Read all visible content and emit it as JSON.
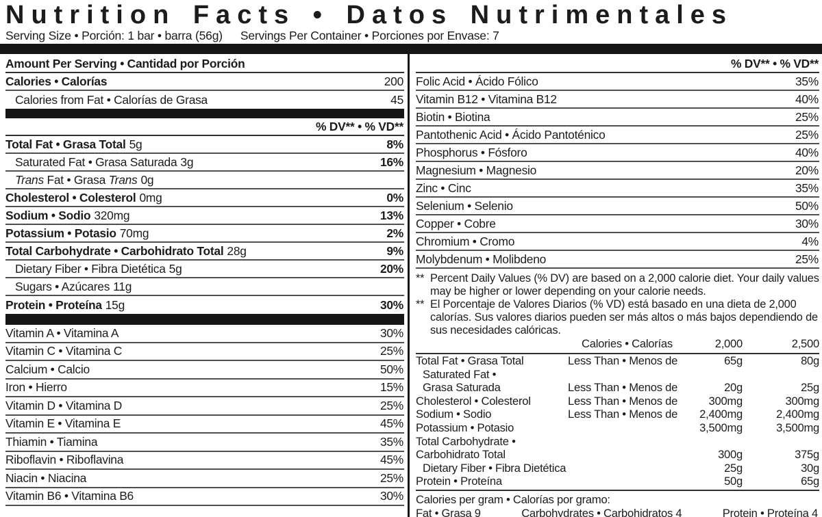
{
  "colors": {
    "text": "#1c1c1c",
    "rule": "#4f4f4f",
    "bar": "#161616",
    "background": "#ffffff"
  },
  "header": {
    "title": "Nutrition Facts • Datos Nutrimentales",
    "serving_size": "Serving Size • Porción: 1 bar • barra (56g)",
    "servings_per_container": "Servings Per Container • Porciones por Envase: 7"
  },
  "left": {
    "amount_per_serving": "Amount Per Serving • Cantidad por Porción",
    "calories": {
      "label": "Calories • Calorías",
      "value": "200"
    },
    "calories_from_fat": {
      "label": "Calories from Fat • Calorías de Grasa",
      "value": "45"
    },
    "dv_header": "% DV** • % VD**",
    "main_rows": [
      {
        "name": "Total Fat • Grasa Total",
        "amount": "5g",
        "dv": "8%",
        "bold": true,
        "indent": false
      },
      {
        "name": "Saturated Fat • Grasa Saturada",
        "amount": "3g",
        "dv": "16%",
        "bold": false,
        "indent": true
      },
      {
        "segments": [
          {
            "t": "Trans",
            "i": true
          },
          {
            "t": " Fat • Grasa ",
            "i": false
          },
          {
            "t": "Trans",
            "i": true
          }
        ],
        "amount": "0g",
        "dv": "",
        "bold": false,
        "indent": true
      },
      {
        "name": "Cholesterol • Colesterol",
        "amount": "0mg",
        "dv": "0%",
        "bold": true,
        "indent": false
      },
      {
        "name": "Sodium • Sodio",
        "amount": "320mg",
        "dv": "13%",
        "bold": true,
        "indent": false
      },
      {
        "name": "Potassium • Potasio",
        "amount": "70mg",
        "dv": "2%",
        "bold": true,
        "indent": false
      },
      {
        "name": "Total Carbohydrate • Carbohidrato Total",
        "amount": "28g",
        "dv": "9%",
        "bold": true,
        "indent": false
      },
      {
        "name": "Dietary Fiber • Fibra Dietética",
        "amount": "5g",
        "dv": "20%",
        "bold": false,
        "indent": true
      },
      {
        "name": "Sugars • Azúcares",
        "amount": "11g",
        "dv": "",
        "bold": false,
        "indent": true
      },
      {
        "name": "Protein • Proteína",
        "amount": "15g",
        "dv": "30%",
        "bold": true,
        "indent": false
      }
    ],
    "vitamins": [
      {
        "name": "Vitamin A • Vitamina A",
        "dv": "30%"
      },
      {
        "name": "Vitamin C • Vitamina C",
        "dv": "25%"
      },
      {
        "name": "Calcium • Calcio",
        "dv": "50%"
      },
      {
        "name": "Iron • Hierro",
        "dv": "15%"
      },
      {
        "name": "Vitamin D • Vitamina D",
        "dv": "25%"
      },
      {
        "name": "Vitamin E • Vitamina E",
        "dv": "45%"
      },
      {
        "name": "Thiamin • Tiamina",
        "dv": "35%"
      },
      {
        "name": "Riboflavin • Riboflavina",
        "dv": "45%"
      },
      {
        "name": "Niacin • Niacina",
        "dv": "25%"
      },
      {
        "name": "Vitamin B6 • Vitamina B6",
        "dv": "30%"
      }
    ]
  },
  "right": {
    "dv_header": "% DV** • % VD**",
    "rows": [
      {
        "name": "Folic Acid • Ácido Fólico",
        "dv": "35%"
      },
      {
        "name": "Vitamin B12 • Vitamina B12",
        "dv": "40%"
      },
      {
        "name": "Biotin • Biotina",
        "dv": "25%"
      },
      {
        "name": "Pantothenic Acid • Ácido Pantoténico",
        "dv": "25%"
      },
      {
        "name": "Phosphorus • Fósforo",
        "dv": "40%"
      },
      {
        "name": "Magnesium • Magnesio",
        "dv": "20%"
      },
      {
        "name": "Zinc • Cinc",
        "dv": "35%"
      },
      {
        "name": "Selenium • Selenio",
        "dv": "50%"
      },
      {
        "name": "Copper • Cobre",
        "dv": "30%"
      },
      {
        "name": "Chromium • Cromo",
        "dv": "4%"
      },
      {
        "name": "Molybdenum • Molibdeno",
        "dv": "25%"
      }
    ],
    "footnotes": [
      {
        "marker": "**",
        "text": "Percent Daily Values (% DV) are based on a 2,000 calorie diet. Your daily values may be higher or lower depending on your calorie needs."
      },
      {
        "marker": "**",
        "text": "El Porcentaje de Valores Diarios (% VD) está basado en una dieta de 2,000 calorías. Sus valores diarios pueden ser más altos o más bajos dependiendo de sus necesidades calóricas."
      }
    ],
    "dv_table": {
      "header": {
        "label": "Calories • Calorías",
        "col1": "2,000",
        "col2": "2,500"
      },
      "rows": [
        {
          "name": "Total Fat • Grasa Total",
          "cond": "Less Than • Menos de",
          "c1": "65g",
          "c2": "80g",
          "indent": false
        },
        {
          "name": "Saturated Fat •",
          "cond": "",
          "c1": "",
          "c2": "",
          "indent": true
        },
        {
          "name": "Grasa Saturada",
          "cond": "Less Than • Menos de",
          "c1": "20g",
          "c2": "25g",
          "indent": true
        },
        {
          "name": "Cholesterol • Colesterol",
          "cond": "Less Than • Menos de",
          "c1": "300mg",
          "c2": "300mg",
          "indent": false
        },
        {
          "name": "Sodium • Sodio",
          "cond": "Less Than • Menos de",
          "c1": "2,400mg",
          "c2": "2,400mg",
          "indent": false
        },
        {
          "name": "Potassium • Potasio",
          "cond": "",
          "c1": "3,500mg",
          "c2": "3,500mg",
          "indent": false
        },
        {
          "name": "Total Carbohydrate •",
          "cond": "",
          "c1": "",
          "c2": "",
          "indent": false
        },
        {
          "name": "Carbohidrato Total",
          "cond": "",
          "c1": "300g",
          "c2": "375g",
          "indent": false
        },
        {
          "name": "Dietary Fiber • Fibra Dietética",
          "cond": "",
          "c1": "25g",
          "c2": "30g",
          "indent": true
        },
        {
          "name": "Protein • Proteína",
          "cond": "",
          "c1": "50g",
          "c2": "65g",
          "indent": false
        }
      ]
    },
    "calories_per_gram": {
      "heading": "Calories per gram • Calorías por gramo:",
      "items": [
        "Fat • Grasa 9",
        "Carbohydrates • Carbohidratos 4",
        "Protein • Proteína 4"
      ]
    }
  }
}
